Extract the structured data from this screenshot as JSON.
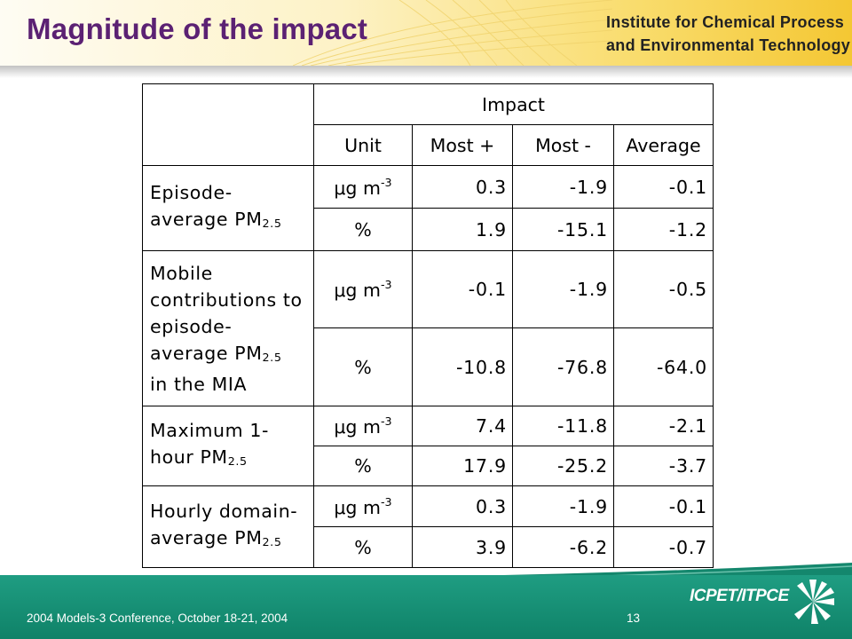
{
  "header": {
    "title": "Magnitude of the impact",
    "institute_line1": "Institute for Chemical Process",
    "institute_line2": "and Environmental Technology"
  },
  "table": {
    "impact_header": "Impact",
    "columns": [
      "Unit",
      "Most +",
      "Most -",
      "Average"
    ],
    "groups": [
      {
        "label_lines": [
          "Episode-",
          "average PM"
        ],
        "label_sub": "2.5",
        "label_tail": "",
        "rows": [
          {
            "unit": "μg m",
            "unit_sup": "-3",
            "most_plus": "0.3",
            "most_minus": "-1.9",
            "average": "-0.1"
          },
          {
            "unit": "%",
            "unit_sup": "",
            "most_plus": "1.9",
            "most_minus": "-15.1",
            "average": "-1.2"
          }
        ]
      },
      {
        "label_lines": [
          "Mobile",
          "contributions to",
          "episode-",
          "average PM"
        ],
        "label_sub": "2.5",
        "label_tail": "in the MIA",
        "rows": [
          {
            "unit": "μg m",
            "unit_sup": "-3",
            "most_plus": "-0.1",
            "most_minus": "-1.9",
            "average": "-0.5"
          },
          {
            "unit": "%",
            "unit_sup": "",
            "most_plus": "-10.8",
            "most_minus": "-76.8",
            "average": "-64.0"
          }
        ]
      },
      {
        "label_lines": [
          "Maximum 1-",
          "hour PM"
        ],
        "label_sub": "2.5",
        "label_tail": "",
        "rows": [
          {
            "unit": "μg m",
            "unit_sup": "-3",
            "most_plus": "7.4",
            "most_minus": "-11.8",
            "average": "-2.1"
          },
          {
            "unit": "%",
            "unit_sup": "",
            "most_plus": "17.9",
            "most_minus": "-25.2",
            "average": "-3.7"
          }
        ]
      },
      {
        "label_lines": [
          "Hourly domain-",
          "average PM"
        ],
        "label_sub": "2.5",
        "label_tail": "",
        "rows": [
          {
            "unit": "μg m",
            "unit_sup": "-3",
            "most_plus": "0.3",
            "most_minus": "-1.9",
            "average": "-0.1"
          },
          {
            "unit": "%",
            "unit_sup": "",
            "most_plus": "3.9",
            "most_minus": "-6.2",
            "average": "-0.7"
          }
        ]
      }
    ]
  },
  "footer": {
    "conference": "2004 Models-3 Conference, October 18-21, 2004",
    "page_number": "13",
    "logo_text": "ICPET/ITPCE"
  },
  "colors": {
    "title": "#5b2173",
    "footer_green": "#14876d",
    "header_gold": "#f4c733"
  }
}
